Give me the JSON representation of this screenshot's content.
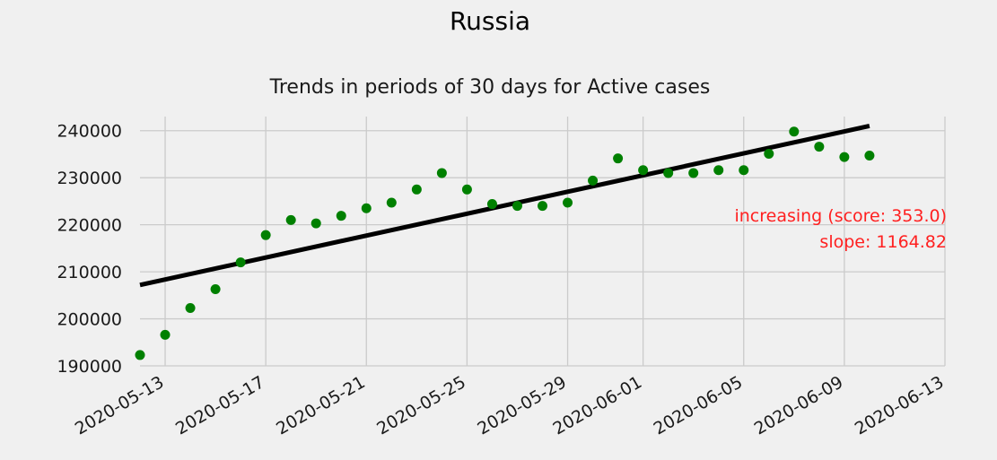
{
  "chart_data": {
    "type": "scatter",
    "title": "Russia",
    "subtitle": "Trends in periods of 30 days for Active cases",
    "xlabel": "",
    "ylabel": "",
    "x_axis_type": "date",
    "xlim": [
      "2020-05-12",
      "2020-06-13"
    ],
    "ylim": [
      190000,
      243000
    ],
    "grid": true,
    "x_tick_labels": [
      "2020-05-13",
      "2020-05-17",
      "2020-05-21",
      "2020-05-25",
      "2020-05-29",
      "2020-06-01",
      "2020-06-05",
      "2020-06-09",
      "2020-06-13"
    ],
    "y_ticks": [
      190000,
      200000,
      210000,
      220000,
      230000,
      240000
    ],
    "y_tick_labels": [
      "190000",
      "200000",
      "210000",
      "220000",
      "230000",
      "240000"
    ],
    "series": [
      {
        "type": "scatter",
        "color": "#008000",
        "points": [
          {
            "x": "2020-05-12",
            "y": 192300
          },
          {
            "x": "2020-05-13",
            "y": 196600
          },
          {
            "x": "2020-05-14",
            "y": 202300
          },
          {
            "x": "2020-05-15",
            "y": 206300
          },
          {
            "x": "2020-05-16",
            "y": 212000
          },
          {
            "x": "2020-05-17",
            "y": 217800
          },
          {
            "x": "2020-05-18",
            "y": 221000
          },
          {
            "x": "2020-05-19",
            "y": 220300
          },
          {
            "x": "2020-05-20",
            "y": 221900
          },
          {
            "x": "2020-05-21",
            "y": 223500
          },
          {
            "x": "2020-05-22",
            "y": 224700
          },
          {
            "x": "2020-05-23",
            "y": 227500
          },
          {
            "x": "2020-05-24",
            "y": 231000
          },
          {
            "x": "2020-05-25",
            "y": 227500
          },
          {
            "x": "2020-05-26",
            "y": 224400
          },
          {
            "x": "2020-05-27",
            "y": 224000
          },
          {
            "x": "2020-05-28",
            "y": 224000
          },
          {
            "x": "2020-05-29",
            "y": 224700
          },
          {
            "x": "2020-05-30",
            "y": 229400
          },
          {
            "x": "2020-05-31",
            "y": 234100
          },
          {
            "x": "2020-06-01",
            "y": 231600
          },
          {
            "x": "2020-06-02",
            "y": 231000
          },
          {
            "x": "2020-06-03",
            "y": 231000
          },
          {
            "x": "2020-06-04",
            "y": 231600
          },
          {
            "x": "2020-06-05",
            "y": 231600
          },
          {
            "x": "2020-06-06",
            "y": 235100
          },
          {
            "x": "2020-06-07",
            "y": 239800
          },
          {
            "x": "2020-06-08",
            "y": 236600
          },
          {
            "x": "2020-06-09",
            "y": 234400
          },
          {
            "x": "2020-06-10",
            "y": 234700
          }
        ]
      },
      {
        "type": "line",
        "color": "#000000",
        "points": [
          {
            "x": "2020-05-12",
            "y": 207200
          },
          {
            "x": "2020-06-10",
            "y": 241000
          }
        ]
      }
    ],
    "annotation": {
      "lines": [
        "increasing (score: 353.0)",
        "slope: 1164.82"
      ],
      "color": "#ff2020",
      "placement": "right"
    }
  }
}
